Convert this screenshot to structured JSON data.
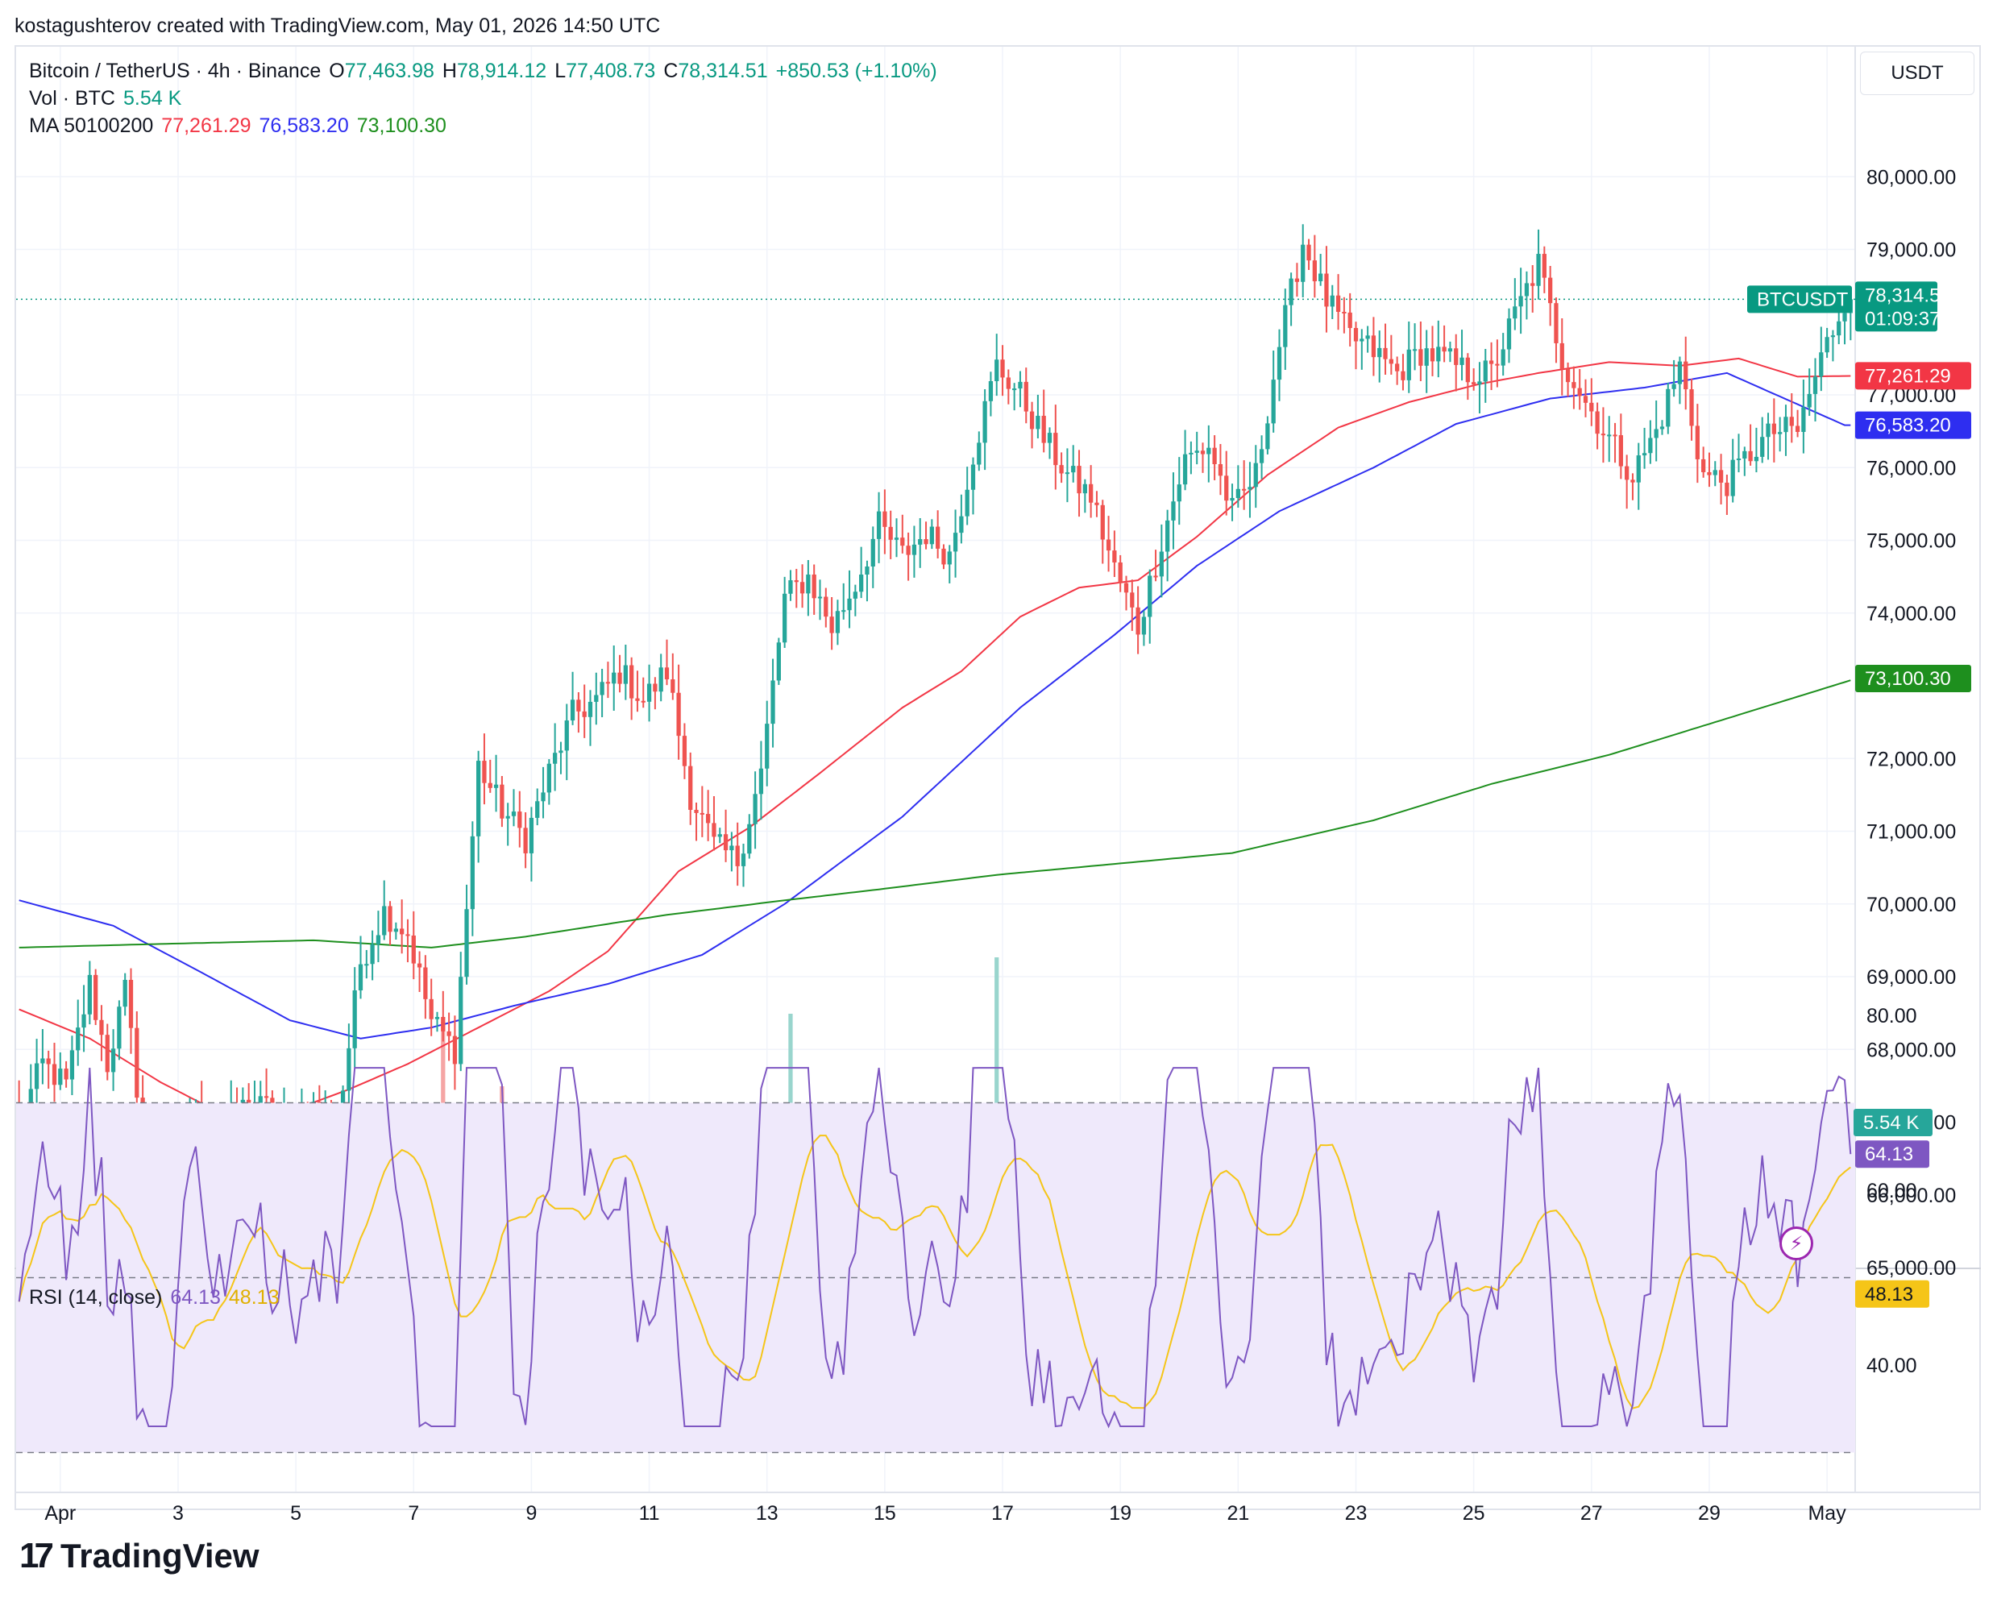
{
  "credit": "kostagushterov created with TradingView.com, May 01, 2026 14:50 UTC",
  "legend": {
    "symbol": "Bitcoin / TetherUS · 4h · Binance",
    "o_label": "O",
    "o_value": "77,463.98",
    "h_label": "H",
    "h_value": "78,914.12",
    "l_label": "L",
    "l_value": "77,408.73",
    "c_label": "C",
    "c_value": "78,314.51",
    "change": "+850.53 (+1.10%)",
    "vol_label": "Vol · BTC",
    "vol_value": "5.54 K",
    "ma_label": "MA 50100200",
    "ma50_value": "77,261.29",
    "ma100_value": "76,583.20",
    "ma200_value": "73,100.30"
  },
  "rsi_legend": {
    "label": "RSI (14, close)",
    "rsi_value": "64.13",
    "rsi_ma_value": "48.13"
  },
  "price_unit": "USDT",
  "branding": {
    "logo_mark": "17",
    "logo_name": "TradingView"
  },
  "colors": {
    "up": "#26a69a",
    "down": "#ef5350",
    "up_vol": "#99d5cd",
    "down_vol": "#f5a5a4",
    "ma50": "#f23645",
    "ma100": "#2e2ef0",
    "ma200": "#1e8f1e",
    "rsi": "#7e57c2",
    "rsi_ma": "#f5c518",
    "rsi_band": "#efe9fb",
    "price_label": "#089981"
  },
  "chart_data": {
    "type": "candlestick",
    "symbol": "BTCUSDT",
    "timeframe": "4h",
    "price_axis": {
      "ticks": [
        "80,000.00",
        "79,000.00",
        "77,000.00",
        "76,000.00",
        "75,000.00",
        "74,000.00",
        "72,000.00",
        "71,000.00",
        "70,000.00",
        "69,000.00",
        "68,000.00",
        "67,000.00",
        "66,000.00",
        "65,000.00"
      ],
      "range": [
        64300,
        80400
      ]
    },
    "time_axis": {
      "labels": [
        "Apr",
        "3",
        "5",
        "7",
        "9",
        "11",
        "13",
        "15",
        "17",
        "19",
        "21",
        "23",
        "25",
        "27",
        "29",
        "May"
      ],
      "label_bars": [
        7,
        27,
        47,
        67,
        87,
        107,
        127,
        147,
        167,
        187,
        207,
        227,
        247,
        267,
        287,
        307
      ]
    },
    "current_price": {
      "symbol": "BTCUSDT",
      "price": "78,314.51",
      "countdown": "01:09:37"
    },
    "ma_labels": {
      "ma50": "77,261.29",
      "ma100": "76,583.20",
      "ma200": "73,100.30"
    },
    "volume_label": "5.54 K",
    "rsi_axis": {
      "ticks": [
        "80.00",
        "60.00",
        "40.00"
      ],
      "range": [
        20,
        85
      ],
      "bands": [
        70,
        50,
        30
      ]
    },
    "rsi_labels": {
      "rsi": "64.13",
      "rsi_ma": "48.13"
    },
    "close_anchors": [
      [
        0,
        67000
      ],
      [
        4,
        67800
      ],
      [
        8,
        67500
      ],
      [
        12,
        68900
      ],
      [
        15,
        67800
      ],
      [
        18,
        68800
      ],
      [
        22,
        66200
      ],
      [
        26,
        66600
      ],
      [
        30,
        67100
      ],
      [
        34,
        66900
      ],
      [
        38,
        67200
      ],
      [
        42,
        67200
      ],
      [
        46,
        66900
      ],
      [
        50,
        67200
      ],
      [
        54,
        66900
      ],
      [
        58,
        69200
      ],
      [
        62,
        69900
      ],
      [
        66,
        69600
      ],
      [
        70,
        68400
      ],
      [
        74,
        68000
      ],
      [
        78,
        71900
      ],
      [
        82,
        71300
      ],
      [
        86,
        70900
      ],
      [
        90,
        71800
      ],
      [
        94,
        72600
      ],
      [
        98,
        72800
      ],
      [
        102,
        73200
      ],
      [
        106,
        72800
      ],
      [
        110,
        73200
      ],
      [
        114,
        71500
      ],
      [
        118,
        70800
      ],
      [
        122,
        70600
      ],
      [
        126,
        71800
      ],
      [
        130,
        74200
      ],
      [
        134,
        74500
      ],
      [
        138,
        73800
      ],
      [
        142,
        74400
      ],
      [
        146,
        75200
      ],
      [
        150,
        74800
      ],
      [
        154,
        75100
      ],
      [
        158,
        74800
      ],
      [
        162,
        76200
      ],
      [
        166,
        77400
      ],
      [
        170,
        77000
      ],
      [
        174,
        76400
      ],
      [
        178,
        75900
      ],
      [
        182,
        75600
      ],
      [
        186,
        74600
      ],
      [
        190,
        73800
      ],
      [
        194,
        75000
      ],
      [
        198,
        76100
      ],
      [
        202,
        76300
      ],
      [
        206,
        75400
      ],
      [
        210,
        75900
      ],
      [
        214,
        77700
      ],
      [
        218,
        79100
      ],
      [
        222,
        78300
      ],
      [
        226,
        77800
      ],
      [
        230,
        77600
      ],
      [
        234,
        77300
      ],
      [
        238,
        77600
      ],
      [
        242,
        77500
      ],
      [
        246,
        77300
      ],
      [
        250,
        77300
      ],
      [
        254,
        78100
      ],
      [
        258,
        78800
      ],
      [
        262,
        77500
      ],
      [
        266,
        76900
      ],
      [
        270,
        76400
      ],
      [
        274,
        75900
      ],
      [
        278,
        76500
      ],
      [
        282,
        77400
      ],
      [
        286,
        75900
      ],
      [
        290,
        75800
      ],
      [
        294,
        76200
      ],
      [
        298,
        76500
      ],
      [
        302,
        76500
      ],
      [
        306,
        77500
      ],
      [
        310,
        78314.51
      ]
    ],
    "ma50_anchors": [
      [
        0,
        68550
      ],
      [
        12,
        68150
      ],
      [
        24,
        67550
      ],
      [
        36,
        67050
      ],
      [
        46,
        67150
      ],
      [
        56,
        67450
      ],
      [
        66,
        67800
      ],
      [
        78,
        68300
      ],
      [
        90,
        68800
      ],
      [
        100,
        69350
      ],
      [
        112,
        70450
      ],
      [
        124,
        71050
      ],
      [
        136,
        71800
      ],
      [
        150,
        72700
      ],
      [
        160,
        73200
      ],
      [
        170,
        73950
      ],
      [
        180,
        74350
      ],
      [
        190,
        74450
      ],
      [
        200,
        75050
      ],
      [
        212,
        75900
      ],
      [
        224,
        76550
      ],
      [
        236,
        76900
      ],
      [
        248,
        77150
      ],
      [
        258,
        77300
      ],
      [
        270,
        77450
      ],
      [
        282,
        77400
      ],
      [
        292,
        77500
      ],
      [
        302,
        77250
      ],
      [
        312,
        77261.29
      ]
    ],
    "ma100_anchors": [
      [
        0,
        70050
      ],
      [
        16,
        69700
      ],
      [
        30,
        69100
      ],
      [
        46,
        68400
      ],
      [
        58,
        68150
      ],
      [
        70,
        68300
      ],
      [
        84,
        68600
      ],
      [
        100,
        68900
      ],
      [
        116,
        69300
      ],
      [
        130,
        70000
      ],
      [
        150,
        71200
      ],
      [
        170,
        72700
      ],
      [
        186,
        73700
      ],
      [
        200,
        74650
      ],
      [
        214,
        75400
      ],
      [
        230,
        76000
      ],
      [
        244,
        76600
      ],
      [
        260,
        76950
      ],
      [
        276,
        77100
      ],
      [
        290,
        77300
      ],
      [
        310,
        76583.2
      ]
    ],
    "ma200_anchors": [
      [
        0,
        69400
      ],
      [
        24,
        69450
      ],
      [
        50,
        69500
      ],
      [
        70,
        69400
      ],
      [
        86,
        69550
      ],
      [
        110,
        69850
      ],
      [
        130,
        70050
      ],
      [
        146,
        70200
      ],
      [
        166,
        70400
      ],
      [
        186,
        70550
      ],
      [
        206,
        70700
      ],
      [
        230,
        71150
      ],
      [
        250,
        71650
      ],
      [
        270,
        72050
      ],
      [
        290,
        72550
      ],
      [
        312,
        73100.3
      ]
    ]
  }
}
